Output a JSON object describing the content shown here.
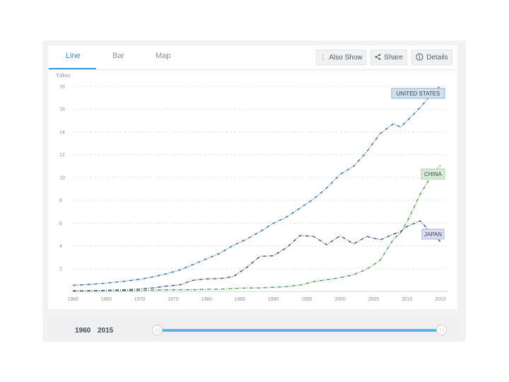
{
  "tabs": [
    {
      "label": "Line",
      "active": true
    },
    {
      "label": "Bar",
      "active": false
    },
    {
      "label": "Map",
      "active": false
    }
  ],
  "toolbar": {
    "also_show_label": "Also Show",
    "share_label": "Share",
    "details_label": "Details"
  },
  "slider": {
    "start_year": "1960",
    "end_year": "2015"
  },
  "chart_data": {
    "type": "line",
    "unit_label": "Trillion",
    "x": [
      1960,
      1962,
      1964,
      1966,
      1968,
      1970,
      1972,
      1974,
      1976,
      1978,
      1980,
      1982,
      1984,
      1986,
      1988,
      1990,
      1992,
      1994,
      1996,
      1998,
      2000,
      2002,
      2004,
      2006,
      2008,
      2009,
      2010,
      2012,
      2014,
      2015
    ],
    "xlim": [
      1960,
      2015
    ],
    "xticks": [
      1960,
      1965,
      1970,
      1975,
      1980,
      1985,
      1990,
      1995,
      2000,
      2005,
      2010,
      2015
    ],
    "ylim": [
      0,
      18
    ],
    "yticks": [
      2,
      4,
      6,
      8,
      10,
      12,
      14,
      16,
      18
    ],
    "series": [
      {
        "name": "UNITED STATES",
        "color": "#2f6fa8",
        "label_bg": "#cfe0ef",
        "label_border": "#8fb2d3",
        "values": [
          0.54,
          0.6,
          0.68,
          0.79,
          0.91,
          1.07,
          1.28,
          1.55,
          1.88,
          2.36,
          2.86,
          3.34,
          4.04,
          4.59,
          5.25,
          5.98,
          6.54,
          7.31,
          8.1,
          9.09,
          10.28,
          10.98,
          12.27,
          13.86,
          14.72,
          14.42,
          14.96,
          16.16,
          17.52,
          18.04
        ]
      },
      {
        "name": "CHINA",
        "color": "#4a9a4a",
        "label_bg": "#d9ecd6",
        "label_border": "#9fcf98",
        "values": [
          0.06,
          0.05,
          0.06,
          0.08,
          0.07,
          0.09,
          0.11,
          0.14,
          0.15,
          0.15,
          0.19,
          0.2,
          0.26,
          0.3,
          0.31,
          0.36,
          0.43,
          0.56,
          0.86,
          1.03,
          1.21,
          1.47,
          1.96,
          2.75,
          4.6,
          5.1,
          6.1,
          8.56,
          10.48,
          11.06
        ]
      },
      {
        "name": "JAPAN",
        "color": "#3a4f82",
        "label_bg": "#dcdff0",
        "label_border": "#a9b0d6",
        "values": [
          0.04,
          0.06,
          0.08,
          0.11,
          0.15,
          0.21,
          0.31,
          0.47,
          0.58,
          0.98,
          1.1,
          1.13,
          1.3,
          2.1,
          3.07,
          3.13,
          3.85,
          4.91,
          4.83,
          4.1,
          4.89,
          4.18,
          4.82,
          4.53,
          5.04,
          5.23,
          5.7,
          6.2,
          4.85,
          4.39
        ]
      }
    ]
  }
}
